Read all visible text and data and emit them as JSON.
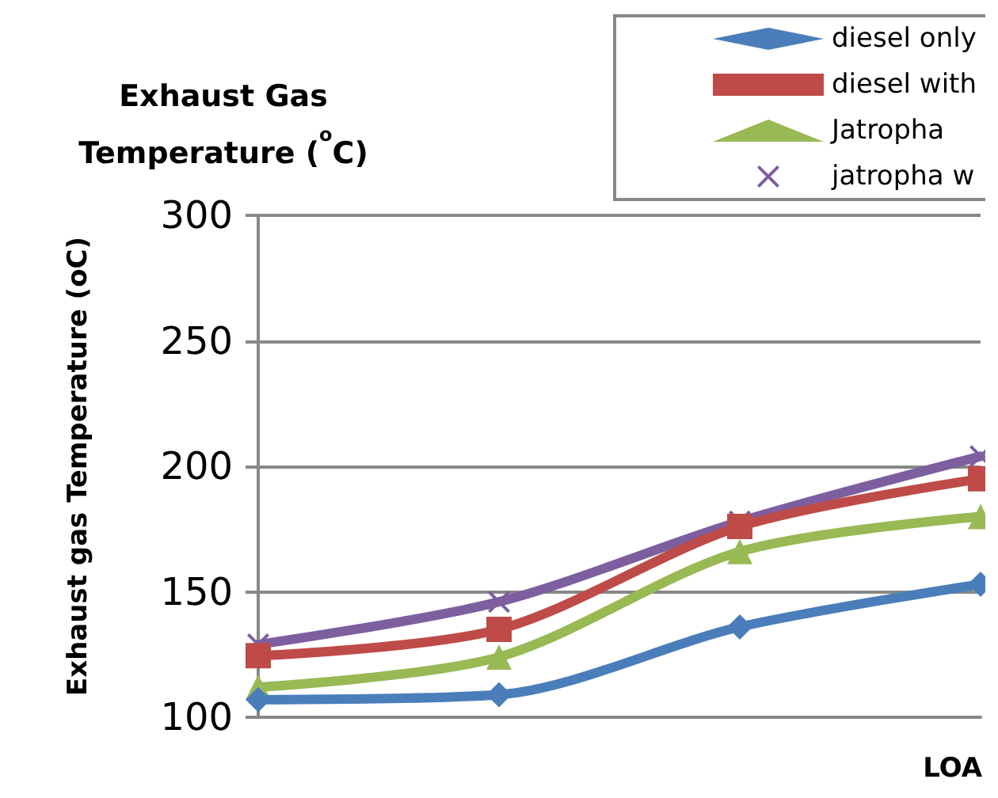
{
  "chart_data": {
    "type": "line",
    "title": "Exhaust Gas\nTemperature ($^{o}$C)",
    "xlabel": "LOA",
    "ylabel": "Exhaust gas Temperature (oC)",
    "categories": [
      null,
      null,
      null,
      null
    ],
    "ylim": [
      100,
      300
    ],
    "yticks": [
      100,
      150,
      200,
      250,
      300
    ],
    "grid": "y",
    "legend": "top right",
    "series": [
      {
        "name": "diesel only",
        "color": "#4a7ebb",
        "marker": "diamond",
        "values": [
          107,
          109,
          136,
          153
        ]
      },
      {
        "name": "diesel with",
        "color": "#be4b48",
        "marker": "square",
        "values": [
          124.5,
          135,
          176,
          195
        ]
      },
      {
        "name": "Jatropha",
        "color": "#98b954",
        "marker": "triangle",
        "values": [
          112,
          124,
          166,
          180
        ]
      },
      {
        "name": "jatropha w",
        "color": "#7d5fa0",
        "marker": "cross",
        "values": [
          129,
          146,
          178,
          204
        ]
      }
    ]
  }
}
